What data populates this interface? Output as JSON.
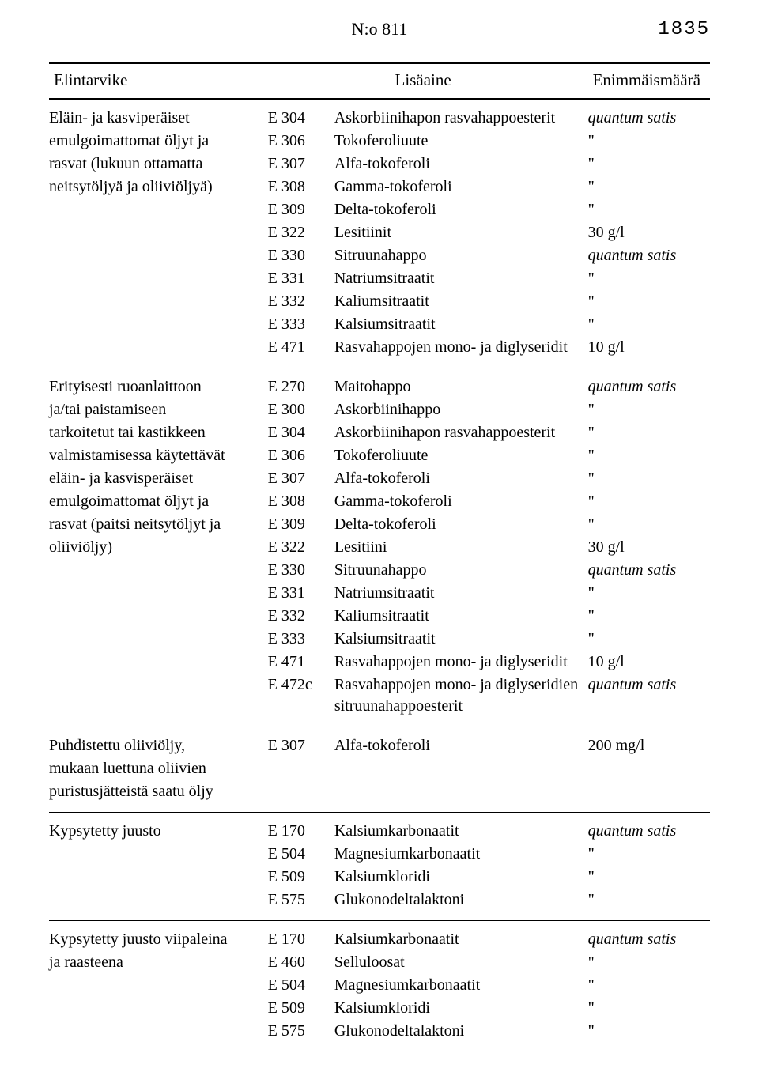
{
  "header": {
    "doc_no": "N:o 811",
    "page_no": "1835"
  },
  "columns": {
    "h1": "Elintarvike",
    "h23": "Lisäaine",
    "h4": "Enimmäismäärä"
  },
  "groups": [
    {
      "name_lines": [
        "Eläin- ja kasviperäiset",
        "emulgoimattomat öljyt ja",
        "rasvat (lukuun ottamatta",
        "neitsytöljyä ja oliiviöljyä)"
      ],
      "rows": [
        {
          "code": "E 304",
          "add": "Askorbiinihapon rasvahappoesterit",
          "max": "quantum satis",
          "max_italic": true
        },
        {
          "code": "E 306",
          "add": "Tokoferoliuute",
          "max": "\"",
          "max_italic": false
        },
        {
          "code": "E 307",
          "add": "Alfa-tokoferoli",
          "max": "\"",
          "max_italic": false
        },
        {
          "code": "E 308",
          "add": "Gamma-tokoferoli",
          "max": "\"",
          "max_italic": false
        },
        {
          "code": "E 309",
          "add": "Delta-tokoferoli",
          "max": "\"",
          "max_italic": false
        },
        {
          "code": "E 322",
          "add": "Lesitiinit",
          "max": "30 g/l",
          "max_italic": false
        },
        {
          "code": "E 330",
          "add": "Sitruunahappo",
          "max": "quantum satis",
          "max_italic": true
        },
        {
          "code": "E 331",
          "add": "Natriumsitraatit",
          "max": "\"",
          "max_italic": false
        },
        {
          "code": "E 332",
          "add": "Kaliumsitraatit",
          "max": "\"",
          "max_italic": false
        },
        {
          "code": "E 333",
          "add": "Kalsiumsitraatit",
          "max": "\"",
          "max_italic": false
        },
        {
          "code": "E 471",
          "add": "Rasvahappojen mono- ja diglyseridit",
          "max": "10 g/l",
          "max_italic": false
        }
      ]
    },
    {
      "name_lines": [
        "Erityisesti ruoanlaittoon",
        "ja/tai paistamiseen",
        "tarkoitetut tai kastikkeen",
        "valmistamisessa käytettävät",
        "eläin- ja kasvisperäiset",
        "emulgoimattomat öljyt ja",
        "rasvat (paitsi neitsytöljyt ja",
        "oliiviöljy)"
      ],
      "rows": [
        {
          "code": "E 270",
          "add": "Maitohappo",
          "max": "quantum satis",
          "max_italic": true
        },
        {
          "code": "E 300",
          "add": "Askorbiinihappo",
          "max": "\"",
          "max_italic": false
        },
        {
          "code": "E 304",
          "add": "Askorbiinihapon rasvahappoesterit",
          "max": "\"",
          "max_italic": false
        },
        {
          "code": "E 306",
          "add": "Tokoferoliuute",
          "max": "\"",
          "max_italic": false
        },
        {
          "code": "E 307",
          "add": "Alfa-tokoferoli",
          "max": "\"",
          "max_italic": false
        },
        {
          "code": "E 308",
          "add": "Gamma-tokoferoli",
          "max": "\"",
          "max_italic": false
        },
        {
          "code": "E 309",
          "add": "Delta-tokoferoli",
          "max": "\"",
          "max_italic": false
        },
        {
          "code": "E 322",
          "add": "Lesitiini",
          "max": "30 g/l",
          "max_italic": false
        },
        {
          "code": "E 330",
          "add": "Sitruunahappo",
          "max": "quantum satis",
          "max_italic": true
        },
        {
          "code": "E 331",
          "add": "Natriumsitraatit",
          "max": "\"",
          "max_italic": false
        },
        {
          "code": "E 332",
          "add": "Kaliumsitraatit",
          "max": "\"",
          "max_italic": false
        },
        {
          "code": "E 333",
          "add": "Kalsiumsitraatit",
          "max": "\"",
          "max_italic": false
        },
        {
          "code": "E 471",
          "add": "Rasvahappojen mono- ja diglyseridit",
          "max": "10 g/l",
          "max_italic": false
        },
        {
          "code": "E 472c",
          "add": "Rasvahappojen mono- ja diglyseridien sitruunahappoesterit",
          "max": "quantum satis",
          "max_italic": true
        }
      ]
    },
    {
      "name_lines": [
        "Puhdistettu oliiviöljy,",
        "mukaan luettuna oliivien",
        "puristusjätteistä saatu öljy"
      ],
      "rows": [
        {
          "code": "E 307",
          "add": "Alfa-tokoferoli",
          "max": "200 mg/l",
          "max_italic": false
        }
      ]
    },
    {
      "name_lines": [
        "Kypsytetty juusto"
      ],
      "rows": [
        {
          "code": "E 170",
          "add": "Kalsiumkarbonaatit",
          "max": "quantum satis",
          "max_italic": true
        },
        {
          "code": "E 504",
          "add": "Magnesiumkarbonaatit",
          "max": "\"",
          "max_italic": false
        },
        {
          "code": "E 509",
          "add": "Kalsiumkloridi",
          "max": "\"",
          "max_italic": false
        },
        {
          "code": "E 575",
          "add": "Glukonodeltalaktoni",
          "max": "\"",
          "max_italic": false
        }
      ]
    },
    {
      "name_lines": [
        "Kypsytetty juusto viipaleina",
        "ja raasteena"
      ],
      "rows": [
        {
          "code": "E 170",
          "add": "Kalsiumkarbonaatit",
          "max": "quantum satis",
          "max_italic": true
        },
        {
          "code": "E 460",
          "add": "Selluloosat",
          "max": "\"",
          "max_italic": false
        },
        {
          "code": "E 504",
          "add": "Magnesiumkarbonaatit",
          "max": "\"",
          "max_italic": false
        },
        {
          "code": "E 509",
          "add": "Kalsiumkloridi",
          "max": "\"",
          "max_italic": false
        },
        {
          "code": "E 575",
          "add": "Glukonodeltalaktoni",
          "max": "\"",
          "max_italic": false
        }
      ]
    }
  ]
}
